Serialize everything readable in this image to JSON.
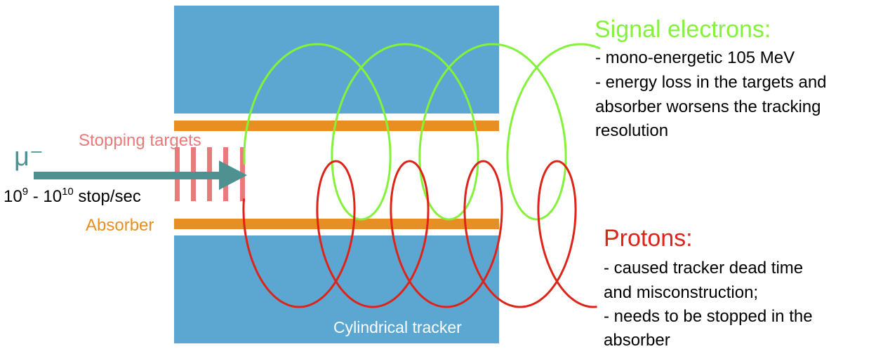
{
  "colors": {
    "tracker": "#5ba7d1",
    "absorber": "#e88f24",
    "targets": "#e87a7a",
    "muon": "#4f9191",
    "electron": "#84f23a",
    "proton": "#de2418",
    "text": "#000000"
  },
  "labels": {
    "muon": "μ⁻",
    "stopping_targets": "Stopping targets",
    "rate_base1": "10",
    "rate_exp1": "9",
    "rate_mid": " - 10",
    "rate_exp2": "10",
    "rate_tail": " stop/sec",
    "absorber": "Absorber",
    "tracker": "Cylindrical tracker"
  },
  "electrons": {
    "title": "Signal electrons:",
    "lines": [
      "- mono-energetic 105 MeV",
      "- energy loss in the targets and",
      "absorber worsens the tracking",
      "resolution"
    ]
  },
  "protons": {
    "title": "Protons:",
    "lines": [
      "- caused tracker dead time",
      "and misconstruction;",
      "- needs to be stopped in the",
      "absorber"
    ]
  }
}
